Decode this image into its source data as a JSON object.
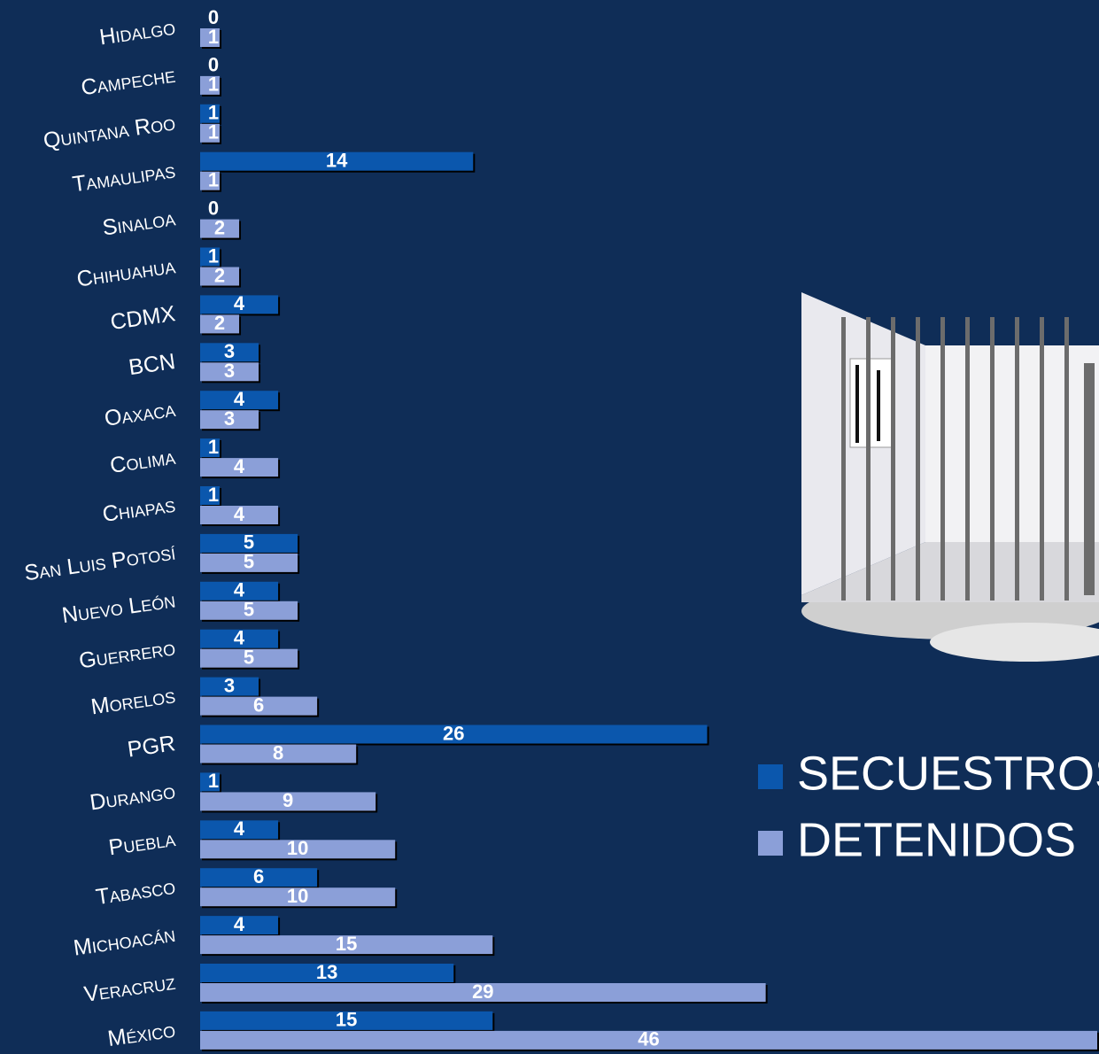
{
  "chart_data": {
    "type": "bar",
    "orientation": "horizontal",
    "categories": [
      "Hidalgo",
      "Campeche",
      "Quintana Roo",
      "Tamaulipas",
      "Sinaloa",
      "Chihuahua",
      "CDMX",
      "BCN",
      "Oaxaca",
      "Colima",
      "Chiapas",
      "San Luis Potosí",
      "Nuevo León",
      "Guerrero",
      "Morelos",
      "PGR",
      "Durango",
      "Puebla",
      "Tabasco",
      "Michoacán",
      "Veracruz",
      "México"
    ],
    "series": [
      {
        "name": "SECUESTROS",
        "color": "#0b57ad",
        "values": [
          0,
          0,
          1,
          14,
          0,
          1,
          4,
          3,
          4,
          1,
          1,
          5,
          4,
          4,
          3,
          26,
          1,
          4,
          6,
          4,
          13,
          15
        ]
      },
      {
        "name": "DETENIDOS",
        "color": "#8b9fd8",
        "values": [
          1,
          1,
          1,
          1,
          2,
          2,
          2,
          3,
          3,
          4,
          4,
          5,
          5,
          5,
          6,
          8,
          9,
          10,
          10,
          15,
          29,
          46
        ]
      }
    ]
  }
}
